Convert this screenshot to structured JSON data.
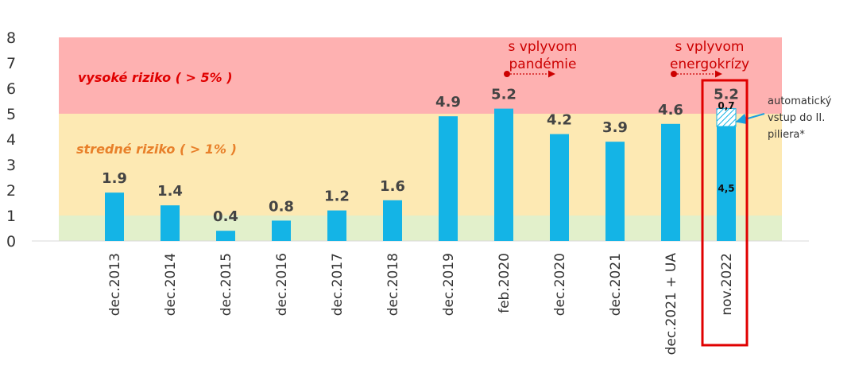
{
  "chart_data": {
    "type": "bar",
    "categories": [
      "dec.2013",
      "dec.2014",
      "dec.2015",
      "dec.2016",
      "dec.2017",
      "dec.2018",
      "dec.2019",
      "feb.2020",
      "dec.2020",
      "dec.2021",
      "dec.2021 + UA",
      "nov.2022"
    ],
    "values": [
      1.9,
      1.4,
      0.4,
      0.8,
      1.2,
      1.6,
      4.9,
      5.2,
      4.2,
      3.9,
      4.6,
      5.2
    ],
    "value_labels": [
      "1.9",
      "1.4",
      "0.4",
      "0.8",
      "1.2",
      "1.6",
      "4.9",
      "5.2",
      "4.2",
      "3.9",
      "4.6",
      "5.2"
    ],
    "ylim": [
      0,
      8
    ],
    "yticks": [
      "0",
      "1",
      "2",
      "3",
      "4",
      "5",
      "6",
      "7",
      "8"
    ],
    "bar_color": "#14b4e6",
    "zones": [
      {
        "from": 0,
        "to": 1,
        "color": "#e2f0cb",
        "label": ""
      },
      {
        "from": 1,
        "to": 5,
        "color": "#fde9b3",
        "label": "stredné riziko ( > 1% )",
        "label_color": "#e8802a"
      },
      {
        "from": 5,
        "to": 8,
        "color": "#feb1b1",
        "label": "vysoké riziko ( > 5% )",
        "label_color": "#e00000"
      }
    ],
    "stack_last": {
      "base": 4.5,
      "base_label": "4,5",
      "extra": 0.7,
      "extra_label": "0,7",
      "extra_pattern": "hatched"
    },
    "annotations": [
      {
        "lines": [
          "s vplyvom",
          "pandémie"
        ],
        "from_category": 7,
        "to_category": 8
      },
      {
        "lines": [
          "s vplyvom",
          "energokrízy"
        ],
        "from_category": 10,
        "to_category": 11
      }
    ],
    "side_note": [
      "automatický",
      "vstup do II.",
      "piliera*"
    ],
    "highlight_category": 11,
    "highlight_color": "#e00000",
    "annotation_color": "#cc0000",
    "callout_arrow_color": "#1ba0e0"
  }
}
